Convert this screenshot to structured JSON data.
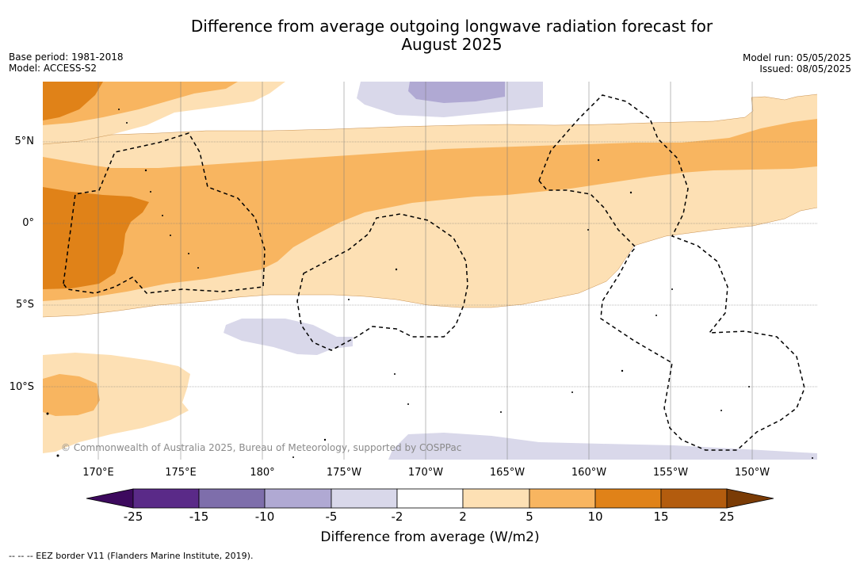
{
  "header": {
    "title_line1": "Difference from average outgoing longwave radiation forecast for",
    "title_line2": "August 2025",
    "base_period": "Base period: 1981-2018",
    "model": "Model: ACCESS-S2",
    "model_run": "Model run: 05/05/2025",
    "issued": "Issued: 08/05/2025"
  },
  "map": {
    "longitude_labels": [
      "170°E",
      "175°E",
      "180°",
      "175°W",
      "170°W",
      "165°W",
      "160°W",
      "155°W",
      "150°W"
    ],
    "latitude_labels": [
      "5°N",
      "0°",
      "5°S",
      "10°S"
    ],
    "copyright": "© Commonwealth of Australia 2025, Bureau of Meteorology, supported by COSPPac"
  },
  "colorbar": {
    "ticks": [
      "-25",
      "-15",
      "-10",
      "-5",
      "-2",
      "2",
      "5",
      "10",
      "15",
      "25"
    ],
    "colors": [
      "#3d0a5e",
      "#5a2a88",
      "#7e6eab",
      "#b0a9d3",
      "#d9d8ea",
      "#ffffff",
      "#fde0b4",
      "#f8b560",
      "#e08218",
      "#b35c0e",
      "#7a3b05"
    ],
    "title": "Difference from average (W/m2)"
  },
  "footer": {
    "eez_note": "--  --  -- EEZ border V11 (Flanders Marine Institute, 2019)."
  }
}
